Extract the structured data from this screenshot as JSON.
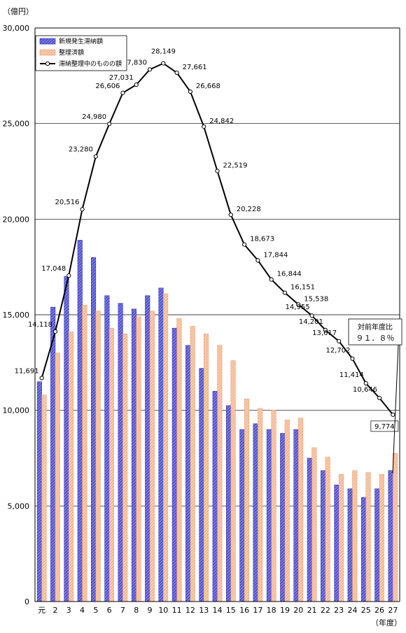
{
  "chart_data": {
    "type": "bar+line",
    "unit_label": "（億円）",
    "x_unit_label": "（年度）",
    "categories": [
      "元",
      "2",
      "3",
      "4",
      "5",
      "6",
      "7",
      "8",
      "9",
      "10",
      "11",
      "12",
      "13",
      "14",
      "15",
      "16",
      "17",
      "18",
      "19",
      "20",
      "21",
      "22",
      "23",
      "24",
      "25",
      "26",
      "27"
    ],
    "ylim": [
      0,
      30000
    ],
    "yticks": [
      "0",
      "5,000",
      "10,000",
      "15,000",
      "20,000",
      "25,000",
      "30,000"
    ],
    "ytick_values": [
      0,
      5000,
      10000,
      15000,
      20000,
      25000,
      30000
    ],
    "grid": true,
    "legend_position": "top-left",
    "series": [
      {
        "name": "新規発生滞納額",
        "kind": "bar",
        "color": "#5050d0",
        "values": [
          11500,
          15400,
          17000,
          18900,
          18000,
          16000,
          15600,
          15300,
          16000,
          16400,
          14300,
          13400,
          12200,
          11000,
          10250,
          9000,
          9300,
          9000,
          8800,
          9000,
          7500,
          6850,
          6100,
          5900,
          5450,
          5900,
          6850
        ]
      },
      {
        "name": "整理済額",
        "kind": "bar",
        "color": "#f4b48a",
        "values": [
          10800,
          13000,
          14100,
          15500,
          15200,
          14300,
          14000,
          14900,
          15200,
          16100,
          14800,
          14400,
          14000,
          13400,
          12600,
          10600,
          10100,
          10000,
          9500,
          9600,
          8050,
          7550,
          6650,
          6850,
          6750,
          6650,
          7750
        ]
      },
      {
        "name": "滞納整理中のものの額",
        "kind": "line",
        "color": "#000000",
        "values": [
          11691,
          14118,
          17048,
          20516,
          23280,
          24980,
          26606,
          27031,
          27830,
          28149,
          27661,
          26668,
          24842,
          22519,
          20228,
          18673,
          17844,
          16844,
          16151,
          15538,
          14955,
          14201,
          13617,
          12702,
          11414,
          10646,
          9774
        ],
        "labels": [
          "11,691",
          "14,118",
          "17,048",
          "20,516",
          "23,280",
          "24,980",
          "26,606",
          "27,031",
          "27,830",
          "28,149",
          "27,661",
          "26,668",
          "24,842",
          "22,519",
          "20,228",
          "18,673",
          "17,844",
          "16,844",
          "16,151",
          "15,538",
          "14,955",
          "14,201",
          "13,617",
          "12,702",
          "11,414",
          "10,646",
          "9,774"
        ]
      }
    ],
    "annotation": {
      "title": "対前年度比",
      "value": "９１．８％"
    }
  }
}
